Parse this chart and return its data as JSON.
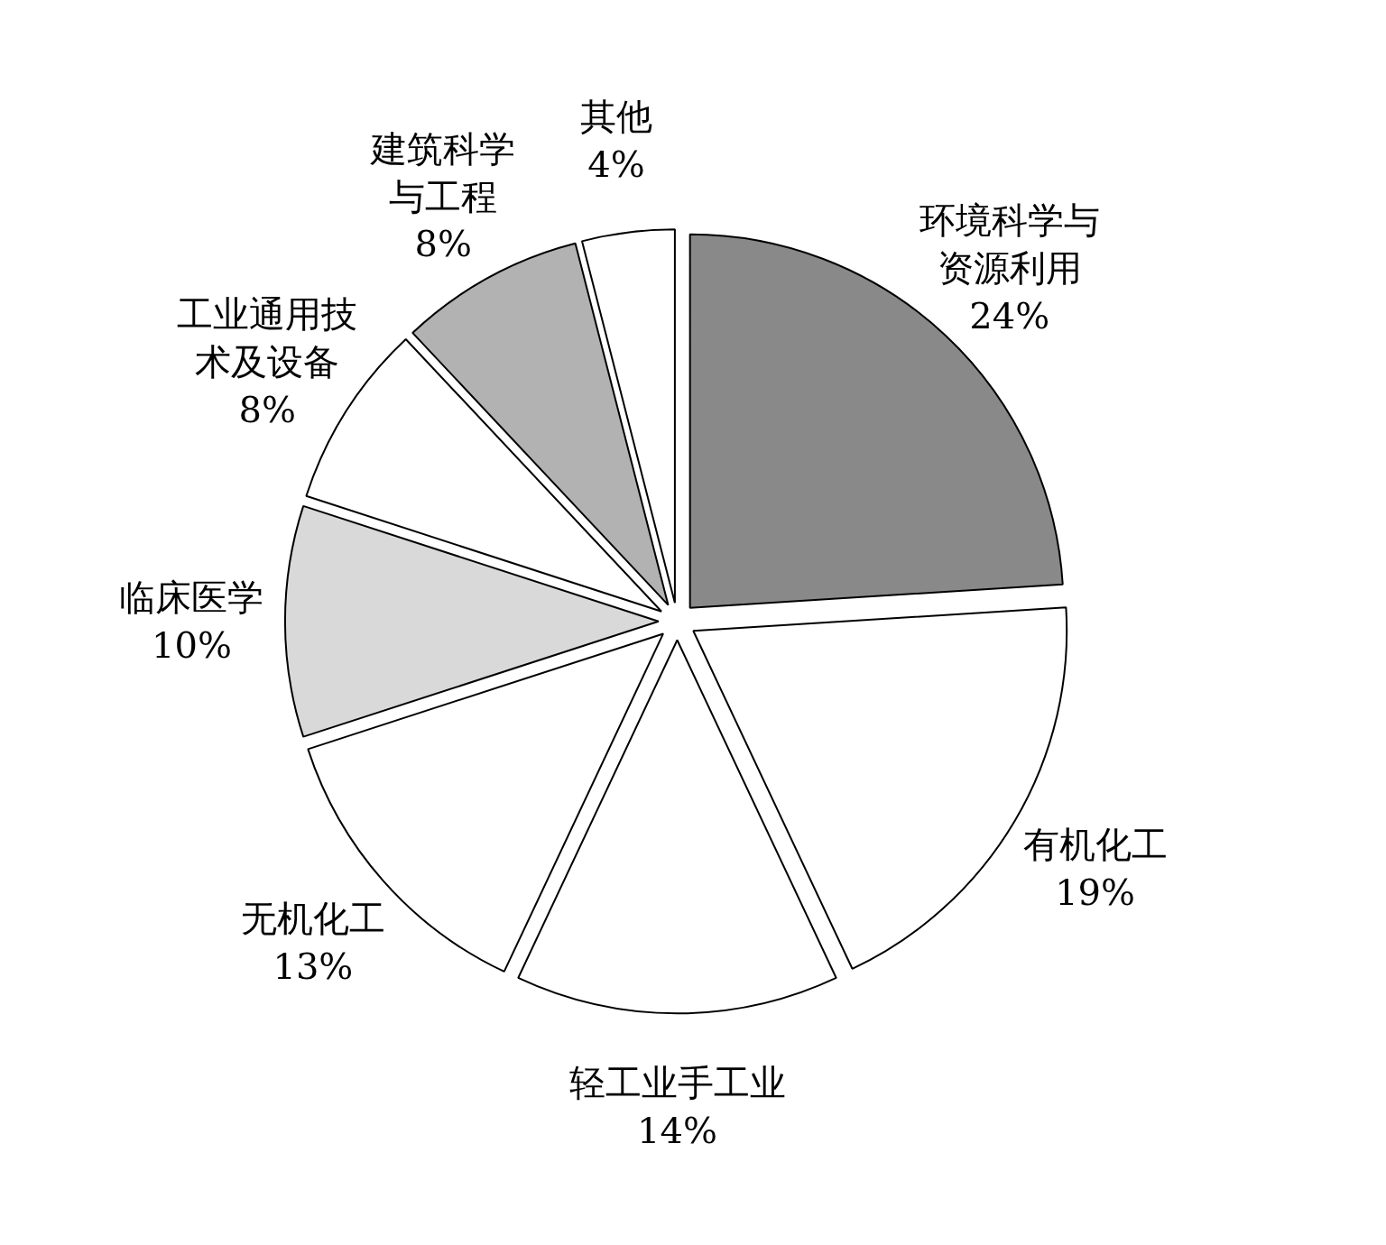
{
  "chart_data": {
    "type": "pie",
    "categories": [
      "环境科学与资源利用",
      "有机化工",
      "轻工业手工业",
      "无机化工",
      "临床医学",
      "工业通用技术及设备",
      "建筑科学与工程",
      "其他"
    ],
    "values": [
      24,
      19,
      14,
      13,
      10,
      8,
      8,
      4
    ],
    "value_labels": [
      "24%",
      "19%",
      "14%",
      "13%",
      "10%",
      "8%",
      "8%",
      "4%"
    ],
    "colors": [
      "#898989",
      "#ffffff",
      "#ffffff",
      "#ffffff",
      "#d9d9d9",
      "#ffffff",
      "#b2b2b2",
      "#ffffff"
    ],
    "legend": false
  }
}
